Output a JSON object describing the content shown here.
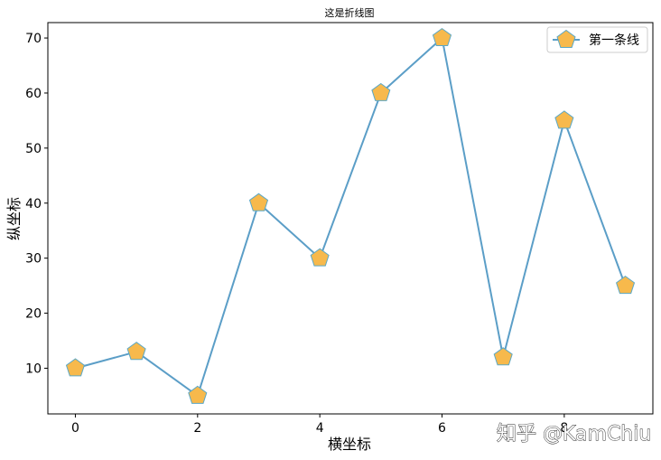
{
  "chart_data": {
    "type": "line",
    "title": "这是折线图",
    "xlabel": "横坐标",
    "ylabel": "纵坐标",
    "x": [
      0,
      1,
      2,
      3,
      4,
      5,
      6,
      7,
      8,
      9
    ],
    "series": [
      {
        "name": "第一条线",
        "values": [
          10,
          13,
          5,
          40,
          30,
          60,
          70,
          12,
          55,
          25
        ]
      }
    ],
    "xlim": [
      -0.45,
      9.45
    ],
    "ylim": [
      1.7,
      72.8
    ],
    "xticks": [
      0,
      2,
      4,
      6,
      8
    ],
    "yticks": [
      10,
      20,
      30,
      40,
      50,
      60,
      70
    ],
    "xtick_labels": [
      "0",
      "2",
      "4",
      "6",
      "8"
    ],
    "ytick_labels": [
      "10",
      "20",
      "30",
      "40",
      "50",
      "60",
      "70"
    ],
    "grid": false,
    "legend": "top-right",
    "colors": {
      "line": "#5b9ec7",
      "marker_fill": "#f7b94c",
      "marker_edge": "#5ba8c7"
    }
  },
  "watermark": "知乎 @KamChiu"
}
